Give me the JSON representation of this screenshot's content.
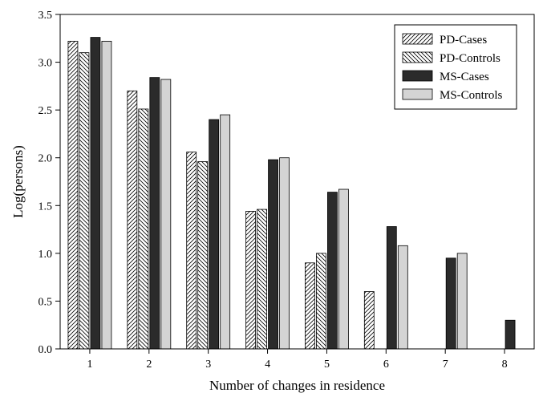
{
  "chart_data": {
    "type": "bar",
    "title": "",
    "xlabel": "Number of changes in residence",
    "ylabel": "Log(persons)",
    "categories": [
      "1",
      "2",
      "3",
      "4",
      "5",
      "6",
      "7",
      "8"
    ],
    "ylim": [
      0,
      3.5
    ],
    "yticks": [
      "0.0",
      "0.5",
      "1.0",
      "1.5",
      "2.0",
      "2.5",
      "3.0",
      "3.5"
    ],
    "grid": false,
    "legend_position": "top-right",
    "series": [
      {
        "name": "PD-Cases",
        "pattern": "hatch-forward",
        "values": [
          3.22,
          2.7,
          2.06,
          1.44,
          0.9,
          0.6,
          null,
          null
        ]
      },
      {
        "name": "PD-Controls",
        "pattern": "hatch-backward",
        "values": [
          3.1,
          2.51,
          1.96,
          1.46,
          1.0,
          null,
          null,
          null
        ]
      },
      {
        "name": "MS-Cases",
        "color": "#2b2b2b",
        "values": [
          3.26,
          2.84,
          2.4,
          1.98,
          1.64,
          1.28,
          0.95,
          0.3
        ]
      },
      {
        "name": "MS-Controls",
        "color": "#d4d4d4",
        "values": [
          3.22,
          2.82,
          2.45,
          2.0,
          1.67,
          1.08,
          1.0,
          null
        ]
      }
    ]
  }
}
